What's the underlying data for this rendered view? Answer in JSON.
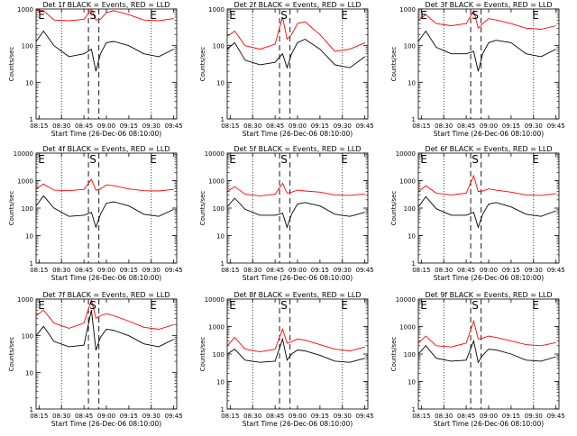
{
  "chart_data": [
    {
      "type": "line",
      "title": "Det 1f BLACK = Events, RED = LLD",
      "xlabel": "Start Time (26-Dec-06 08:10:00)",
      "ylabel": "Counts/sec",
      "ylim": [
        1,
        1000
      ],
      "yscale": "log",
      "grid": "dotted vertical lines at 08:30 and 09:30",
      "xticks": [
        "08:15",
        "08:30",
        "08:45",
        "09:00",
        "09:15",
        "09:30",
        "09:45"
      ],
      "yticks": [
        "1",
        "10",
        "100",
        "1000"
      ],
      "markers": [
        "E",
        "S",
        "E"
      ],
      "series": [
        {
          "color": "#ff0000",
          "x": [
            "08:13",
            "08:18",
            "08:25",
            "08:35",
            "08:45",
            "08:50",
            "08:53",
            "08:56",
            "09:00",
            "09:05",
            "09:15",
            "09:25",
            "09:35",
            "09:45"
          ],
          "values": [
            950,
            900,
            500,
            480,
            520,
            1000,
            500,
            520,
            800,
            900,
            700,
            500,
            480,
            550
          ]
        },
        {
          "color": "#000000",
          "x": [
            "08:13",
            "08:18",
            "08:25",
            "08:35",
            "08:45",
            "08:50",
            "08:53",
            "08:56",
            "09:00",
            "09:05",
            "09:15",
            "09:25",
            "09:35",
            "09:45"
          ],
          "values": [
            130,
            250,
            100,
            50,
            60,
            80,
            20,
            60,
            120,
            130,
            100,
            60,
            50,
            80
          ]
        }
      ]
    },
    {
      "type": "line",
      "title": "Det 2f BLACK = Events, RED = LLD",
      "xlabel": "Start Time (26-Dec-06 08:10:00)",
      "ylabel": "Counts/sec",
      "ylim": [
        1,
        1000
      ],
      "yscale": "log",
      "grid": "dotted vertical lines at 08:30 and 09:30",
      "xticks": [
        "08:15",
        "08:30",
        "08:45",
        "09:00",
        "09:15",
        "09:30",
        "09:45"
      ],
      "yticks": [
        "1",
        "10",
        "100",
        "1000"
      ],
      "markers": [
        "E",
        "S",
        "E"
      ],
      "series": [
        {
          "color": "#ff0000",
          "x": [
            "08:13",
            "08:18",
            "08:25",
            "08:35",
            "08:45",
            "08:50",
            "08:53",
            "08:56",
            "09:00",
            "09:05",
            "09:15",
            "09:25",
            "09:35",
            "09:45"
          ],
          "values": [
            180,
            250,
            100,
            80,
            110,
            600,
            150,
            200,
            400,
            450,
            200,
            70,
            80,
            120
          ]
        },
        {
          "color": "#000000",
          "x": [
            "08:13",
            "08:18",
            "08:25",
            "08:35",
            "08:45",
            "08:50",
            "08:53",
            "08:56",
            "09:00",
            "09:05",
            "09:15",
            "09:25",
            "09:35",
            "09:45"
          ],
          "values": [
            80,
            120,
            40,
            30,
            35,
            60,
            25,
            60,
            120,
            150,
            80,
            30,
            25,
            50
          ]
        }
      ]
    },
    {
      "type": "line",
      "title": "Det 3f BLACK = Events, RED = LLD",
      "xlabel": "Start Time (26-Dec-06 08:10:00)",
      "ylabel": "Counts/sec",
      "ylim": [
        1,
        1000
      ],
      "yscale": "log",
      "grid": "dotted vertical lines at 08:30 and 09:30",
      "xticks": [
        "08:15",
        "08:30",
        "08:45",
        "09:00",
        "09:15",
        "09:30",
        "09:45"
      ],
      "yticks": [
        "1",
        "10",
        "100",
        "1000"
      ],
      "markers": [
        "E",
        "S",
        "E"
      ],
      "series": [
        {
          "color": "#ff0000",
          "x": [
            "08:13",
            "08:18",
            "08:25",
            "08:35",
            "08:45",
            "08:50",
            "08:53",
            "08:56",
            "09:00",
            "09:05",
            "09:15",
            "09:25",
            "09:35",
            "09:45"
          ],
          "values": [
            500,
            700,
            400,
            350,
            400,
            900,
            300,
            400,
            550,
            500,
            400,
            300,
            280,
            350
          ]
        },
        {
          "color": "#000000",
          "x": [
            "08:13",
            "08:18",
            "08:25",
            "08:35",
            "08:45",
            "08:50",
            "08:53",
            "08:56",
            "09:00",
            "09:05",
            "09:15",
            "09:25",
            "09:35",
            "09:45"
          ],
          "values": [
            130,
            250,
            90,
            60,
            60,
            70,
            20,
            60,
            120,
            140,
            120,
            60,
            50,
            80
          ]
        }
      ]
    },
    {
      "type": "line",
      "title": "Det 4f BLACK = Events, RED = LLD",
      "xlabel": "Start Time (26-Dec-06 08:10:00)",
      "ylabel": "Counts/sec",
      "ylim": [
        1,
        10000
      ],
      "yscale": "log",
      "grid": "dotted vertical lines at 08:30 and 09:30",
      "xticks": [
        "08:15",
        "08:30",
        "08:45",
        "09:00",
        "09:15",
        "09:30",
        "09:45"
      ],
      "yticks": [
        "1",
        "10",
        "100",
        "1000",
        "10000"
      ],
      "markers": [
        "E",
        "S",
        "E"
      ],
      "series": [
        {
          "color": "#ff0000",
          "x": [
            "08:13",
            "08:18",
            "08:25",
            "08:35",
            "08:45",
            "08:50",
            "08:53",
            "08:56",
            "09:00",
            "09:05",
            "09:15",
            "09:25",
            "09:35",
            "09:45"
          ],
          "values": [
            500,
            750,
            450,
            430,
            480,
            1100,
            450,
            500,
            700,
            650,
            500,
            430,
            420,
            480
          ]
        },
        {
          "color": "#000000",
          "x": [
            "08:13",
            "08:18",
            "08:25",
            "08:35",
            "08:45",
            "08:50",
            "08:53",
            "08:56",
            "09:00",
            "09:05",
            "09:15",
            "09:25",
            "09:35",
            "09:45"
          ],
          "values": [
            120,
            280,
            100,
            50,
            55,
            70,
            20,
            60,
            150,
            170,
            120,
            60,
            50,
            90
          ]
        }
      ]
    },
    {
      "type": "line",
      "title": "Det 5f BLACK = Events, RED = LLD",
      "xlabel": "Start Time (26-Dec-06 08:10:00)",
      "ylabel": "Counts/sec",
      "ylim": [
        1,
        10000
      ],
      "yscale": "log",
      "grid": "dotted vertical lines at 08:30 and 09:30",
      "xticks": [
        "08:15",
        "08:30",
        "08:45",
        "09:00",
        "09:15",
        "09:30",
        "09:45"
      ],
      "yticks": [
        "1",
        "10",
        "100",
        "1000",
        "10000"
      ],
      "markers": [
        "E",
        "S",
        "E"
      ],
      "series": [
        {
          "color": "#ff0000",
          "x": [
            "08:13",
            "08:18",
            "08:25",
            "08:35",
            "08:45",
            "08:50",
            "08:53",
            "08:56",
            "09:00",
            "09:05",
            "09:15",
            "09:25",
            "09:35",
            "09:45"
          ],
          "values": [
            400,
            600,
            320,
            280,
            320,
            800,
            350,
            380,
            450,
            420,
            380,
            300,
            290,
            330
          ]
        },
        {
          "color": "#000000",
          "x": [
            "08:13",
            "08:18",
            "08:25",
            "08:35",
            "08:45",
            "08:50",
            "08:53",
            "08:56",
            "09:00",
            "09:05",
            "09:15",
            "09:25",
            "09:35",
            "09:45"
          ],
          "values": [
            110,
            230,
            90,
            55,
            55,
            65,
            20,
            60,
            140,
            160,
            120,
            60,
            50,
            70
          ]
        }
      ]
    },
    {
      "type": "line",
      "title": "Det 6f BLACK = Events, RED = LLD",
      "xlabel": "Start Time (26-Dec-06 08:10:00)",
      "ylabel": "Counts/sec",
      "ylim": [
        1,
        10000
      ],
      "yscale": "log",
      "grid": "dotted vertical lines at 08:30 and 09:30",
      "xticks": [
        "08:15",
        "08:30",
        "08:45",
        "09:00",
        "09:15",
        "09:30",
        "09:45"
      ],
      "yticks": [
        "1",
        "10",
        "100",
        "1000",
        "10000"
      ],
      "markers": [
        "E",
        "S",
        "E"
      ],
      "series": [
        {
          "color": "#ff0000",
          "x": [
            "08:13",
            "08:18",
            "08:25",
            "08:35",
            "08:45",
            "08:50",
            "08:53",
            "08:56",
            "09:00",
            "09:05",
            "09:15",
            "09:25",
            "09:35",
            "09:45"
          ],
          "values": [
            400,
            650,
            350,
            300,
            350,
            1500,
            400,
            420,
            500,
            450,
            380,
            300,
            290,
            340
          ]
        },
        {
          "color": "#000000",
          "x": [
            "08:13",
            "08:18",
            "08:25",
            "08:35",
            "08:45",
            "08:50",
            "08:53",
            "08:56",
            "09:00",
            "09:05",
            "09:15",
            "09:25",
            "09:35",
            "09:45"
          ],
          "values": [
            110,
            260,
            95,
            55,
            55,
            70,
            20,
            60,
            140,
            160,
            110,
            60,
            50,
            80
          ]
        }
      ]
    },
    {
      "type": "line",
      "title": "Det 7f BLACK = Events, RED = LLD",
      "xlabel": "Start Time (26-Dec-06 08:10:00)",
      "ylabel": "Counts/sec",
      "ylim": [
        1,
        1000
      ],
      "yscale": "log",
      "grid": "dotted vertical lines at 08:30 and 09:30",
      "xticks": [
        "08:15",
        "08:30",
        "08:45",
        "09:00",
        "09:15",
        "09:30",
        "09:45"
      ],
      "yticks": [
        "1",
        "10",
        "100",
        "1000"
      ],
      "markers": [
        "E",
        "S",
        "E"
      ],
      "series": [
        {
          "color": "#ff0000",
          "x": [
            "08:13",
            "08:18",
            "08:25",
            "08:35",
            "08:45",
            "08:50",
            "08:53",
            "08:56",
            "09:00",
            "09:05",
            "09:15",
            "09:25",
            "09:35",
            "09:45"
          ],
          "values": [
            350,
            500,
            220,
            160,
            220,
            950,
            300,
            350,
            400,
            350,
            250,
            170,
            150,
            200
          ]
        },
        {
          "color": "#000000",
          "x": [
            "08:13",
            "08:18",
            "08:25",
            "08:35",
            "08:45",
            "08:50",
            "08:53",
            "08:56",
            "09:00",
            "09:05",
            "09:15",
            "09:25",
            "09:35",
            "09:45"
          ],
          "values": [
            100,
            180,
            70,
            50,
            55,
            500,
            40,
            90,
            150,
            140,
            100,
            60,
            50,
            80
          ]
        }
      ]
    },
    {
      "type": "line",
      "title": "Det 8f BLACK = Events, RED = LLD",
      "xlabel": "Start Time (26-Dec-06 08:10:00)",
      "ylabel": "Counts/sec",
      "ylim": [
        1,
        10000
      ],
      "yscale": "log",
      "grid": "dotted vertical lines at 08:30 and 09:30",
      "xticks": [
        "08:15",
        "08:30",
        "08:45",
        "09:00",
        "09:15",
        "09:30",
        "09:45"
      ],
      "yticks": [
        "1",
        "10",
        "100",
        "1000",
        "10000"
      ],
      "markers": [
        "E",
        "S",
        "E"
      ],
      "series": [
        {
          "color": "#ff0000",
          "x": [
            "08:13",
            "08:18",
            "08:25",
            "08:35",
            "08:45",
            "08:50",
            "08:53",
            "08:56",
            "09:00",
            "09:05",
            "09:15",
            "09:25",
            "09:35",
            "09:45"
          ],
          "values": [
            200,
            400,
            150,
            120,
            150,
            800,
            250,
            280,
            350,
            320,
            220,
            150,
            130,
            180
          ]
        },
        {
          "color": "#000000",
          "x": [
            "08:13",
            "08:18",
            "08:25",
            "08:35",
            "08:45",
            "08:50",
            "08:53",
            "08:56",
            "09:00",
            "09:05",
            "09:15",
            "09:25",
            "09:35",
            "09:45"
          ],
          "values": [
            100,
            150,
            60,
            50,
            55,
            350,
            60,
            100,
            140,
            130,
            90,
            55,
            50,
            70
          ]
        }
      ]
    },
    {
      "type": "line",
      "title": "Det 9f BLACK = Events, RED = LLD",
      "xlabel": "Start Time (26-Dec-06 08:10:00)",
      "ylabel": "Counts/sec",
      "ylim": [
        1,
        10000
      ],
      "yscale": "log",
      "grid": "dotted vertical lines at 08:30 and 09:30",
      "xticks": [
        "08:15",
        "08:30",
        "08:45",
        "09:00",
        "09:15",
        "09:30",
        "09:45"
      ],
      "yticks": [
        "1",
        "10",
        "100",
        "1000",
        "10000"
      ],
      "markers": [
        "E",
        "S",
        "E"
      ],
      "series": [
        {
          "color": "#ff0000",
          "x": [
            "08:13",
            "08:18",
            "08:25",
            "08:35",
            "08:45",
            "08:50",
            "08:53",
            "08:56",
            "09:00",
            "09:05",
            "09:15",
            "09:25",
            "09:35",
            "09:45"
          ],
          "values": [
            250,
            450,
            200,
            180,
            250,
            1600,
            350,
            380,
            450,
            400,
            300,
            220,
            200,
            260
          ]
        },
        {
          "color": "#000000",
          "x": [
            "08:13",
            "08:18",
            "08:25",
            "08:35",
            "08:45",
            "08:50",
            "08:53",
            "08:56",
            "09:00",
            "09:05",
            "09:15",
            "09:25",
            "09:35",
            "09:45"
          ],
          "values": [
            100,
            200,
            70,
            55,
            60,
            300,
            50,
            90,
            150,
            140,
            100,
            60,
            55,
            80
          ]
        }
      ]
    }
  ]
}
